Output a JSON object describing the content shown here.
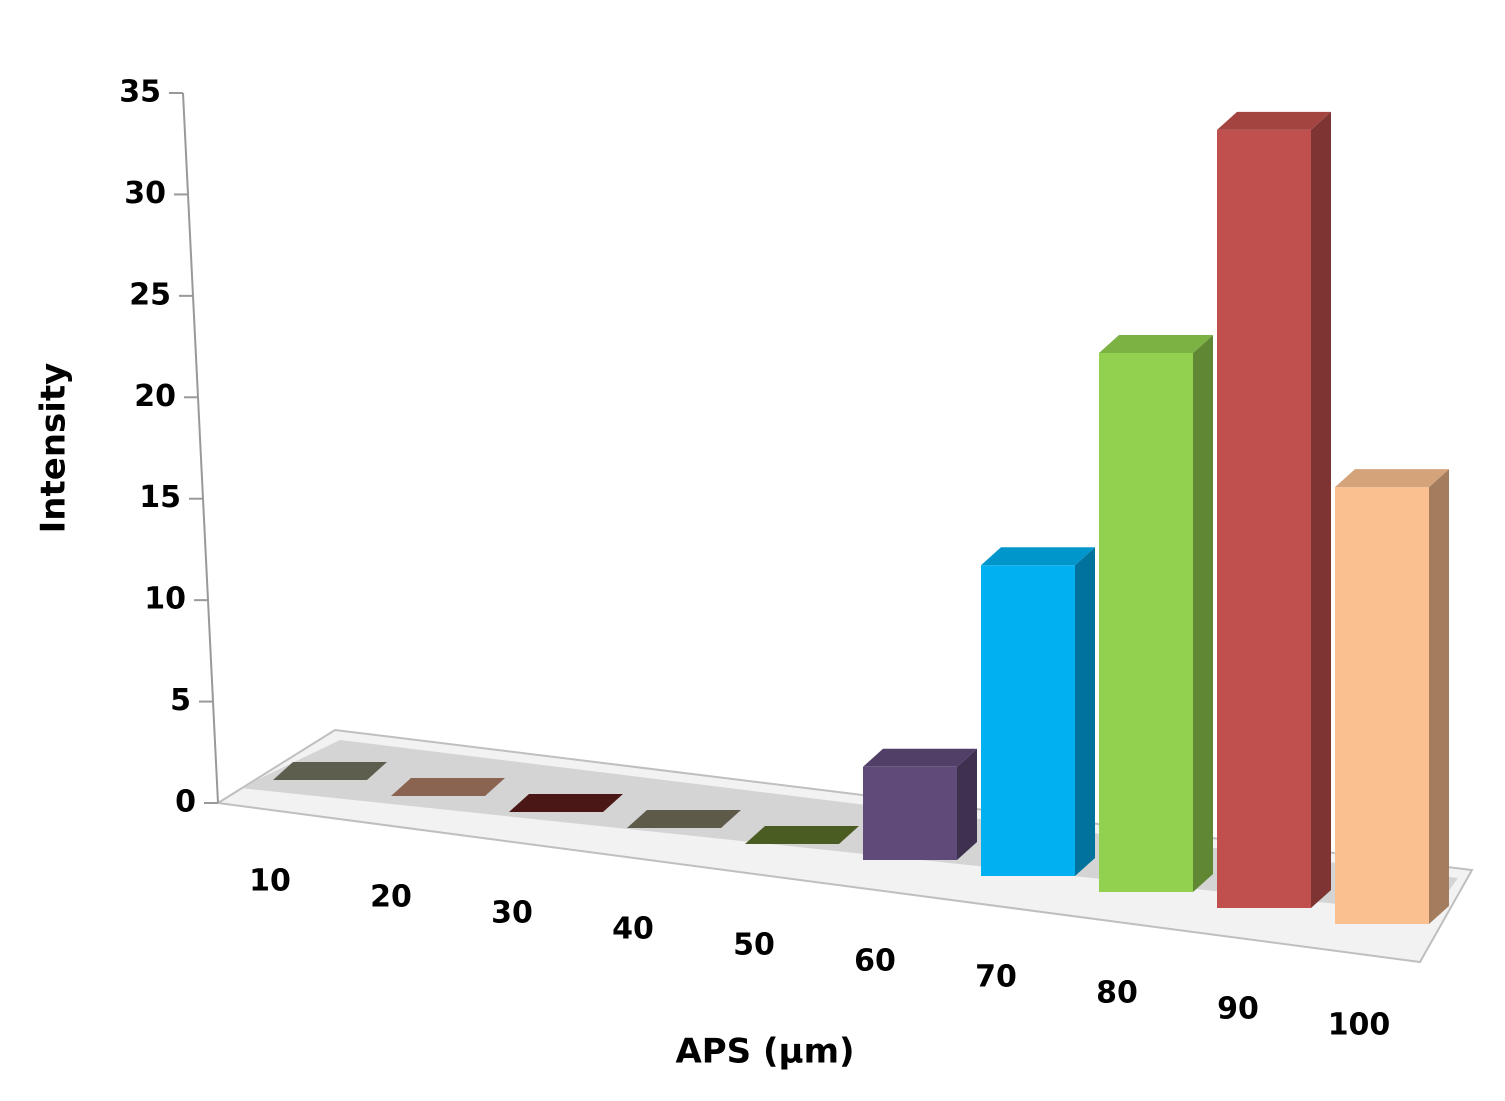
{
  "chart_data": {
    "type": "bar3d",
    "x_label": "APS (µm)",
    "y_label": "Intensity",
    "categories": [
      "10",
      "20",
      "30",
      "40",
      "50",
      "60",
      "70",
      "80",
      "90",
      "100"
    ],
    "values": [
      0,
      0,
      0,
      0,
      0,
      4,
      13,
      22,
      31,
      17
    ],
    "colors": [
      "#5e5e4e",
      "#8a6450",
      "#4a1616",
      "#5e5a4a",
      "#4a5c22",
      "#5f4a7a",
      "#00b0f0",
      "#92d050",
      "#c0504d",
      "#fac090"
    ],
    "ylim": [
      0,
      35
    ],
    "yticks": [
      0,
      5,
      10,
      15,
      20,
      25,
      30,
      35
    ]
  }
}
